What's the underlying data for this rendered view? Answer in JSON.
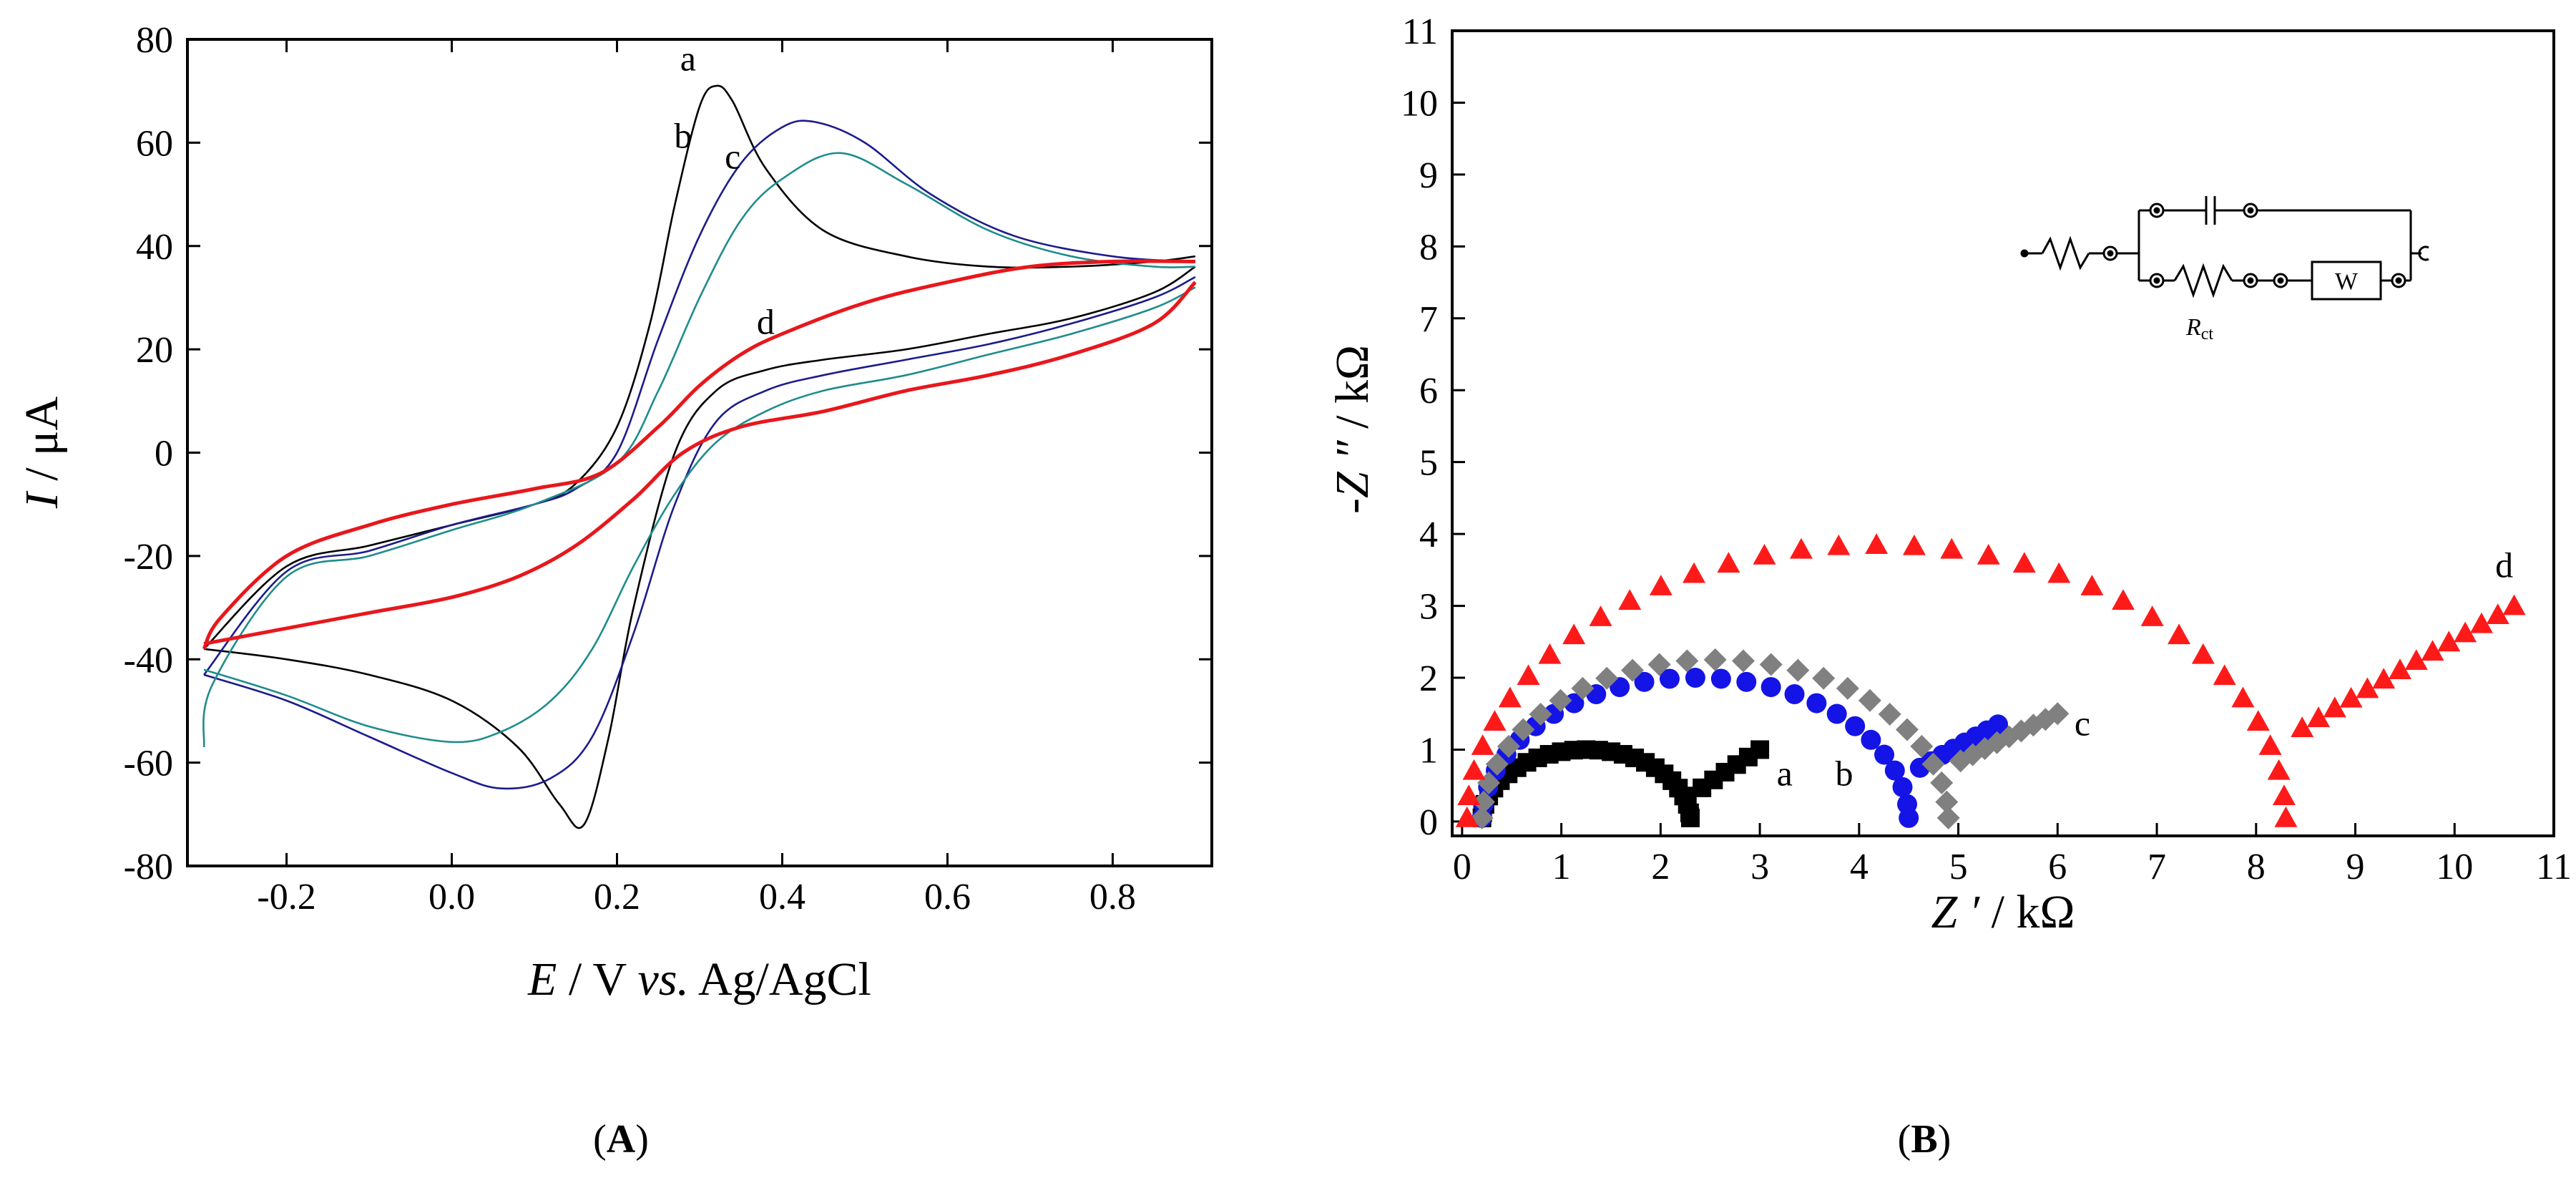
{
  "chart_data": [
    {
      "type": "line",
      "panel_label": "(A)",
      "panel_letter": "A",
      "xlabel": "E / V vs. Ag/AgCl",
      "xlabel_parts": {
        "var": "E",
        "sep": " / V ",
        "vs": "vs.",
        "ref": " Ag/AgCl"
      },
      "ylabel": "I / μA",
      "ylabel_parts": {
        "var": "I",
        "rest": " / μA"
      },
      "xlim": [
        -0.32,
        0.92
      ],
      "ylim": [
        -80,
        80
      ],
      "xticks": [
        "-0.2",
        "0.0",
        "0.2",
        "0.4",
        "0.6",
        "0.8"
      ],
      "xtick_values": [
        -0.2,
        0.0,
        0.2,
        0.4,
        0.6,
        0.8
      ],
      "yticks": [
        "80",
        "60",
        "40",
        "20",
        "0",
        "-20",
        "-40",
        "-60",
        "-80"
      ],
      "ytick_values": [
        80,
        60,
        40,
        20,
        0,
        -20,
        -40,
        -60,
        -80
      ],
      "series": [
        {
          "name": "a",
          "color": "#000000",
          "forward": [
            [
              -0.3,
              -38
            ],
            [
              -0.2,
              -22
            ],
            [
              -0.1,
              -18
            ],
            [
              0.0,
              -14
            ],
            [
              0.1,
              -10
            ],
            [
              0.15,
              -6
            ],
            [
              0.2,
              5
            ],
            [
              0.24,
              25
            ],
            [
              0.27,
              48
            ],
            [
              0.3,
              67
            ],
            [
              0.32,
              71
            ],
            [
              0.34,
              68
            ],
            [
              0.38,
              55
            ],
            [
              0.45,
              43
            ],
            [
              0.55,
              38
            ],
            [
              0.65,
              36
            ],
            [
              0.75,
              36
            ],
            [
              0.85,
              37
            ],
            [
              0.9,
              38
            ]
          ],
          "reverse": [
            [
              0.9,
              36
            ],
            [
              0.85,
              31
            ],
            [
              0.75,
              26
            ],
            [
              0.65,
              23
            ],
            [
              0.55,
              20
            ],
            [
              0.45,
              18
            ],
            [
              0.38,
              16
            ],
            [
              0.32,
              12
            ],
            [
              0.27,
              0
            ],
            [
              0.22,
              -30
            ],
            [
              0.19,
              -55
            ],
            [
              0.16,
              -72
            ],
            [
              0.13,
              -68
            ],
            [
              0.08,
              -57
            ],
            [
              0.0,
              -48
            ],
            [
              -0.1,
              -43
            ],
            [
              -0.2,
              -40
            ],
            [
              -0.3,
              -38
            ]
          ]
        },
        {
          "name": "b",
          "color": "#1c1c8c",
          "forward": [
            [
              -0.3,
              -43
            ],
            [
              -0.2,
              -23
            ],
            [
              -0.1,
              -19
            ],
            [
              0.0,
              -14
            ],
            [
              0.1,
              -10
            ],
            [
              0.15,
              -7
            ],
            [
              0.2,
              0
            ],
            [
              0.25,
              22
            ],
            [
              0.3,
              42
            ],
            [
              0.35,
              56
            ],
            [
              0.4,
              63
            ],
            [
              0.44,
              64
            ],
            [
              0.5,
              60
            ],
            [
              0.58,
              50
            ],
            [
              0.68,
              42
            ],
            [
              0.8,
              38
            ],
            [
              0.9,
              37
            ]
          ],
          "reverse": [
            [
              0.9,
              34
            ],
            [
              0.85,
              30
            ],
            [
              0.75,
              25
            ],
            [
              0.65,
              21
            ],
            [
              0.55,
              18
            ],
            [
              0.45,
              15
            ],
            [
              0.38,
              12
            ],
            [
              0.32,
              6
            ],
            [
              0.27,
              -10
            ],
            [
              0.22,
              -35
            ],
            [
              0.17,
              -55
            ],
            [
              0.12,
              -63
            ],
            [
              0.06,
              -65
            ],
            [
              0.0,
              -62
            ],
            [
              -0.1,
              -55
            ],
            [
              -0.2,
              -48
            ],
            [
              -0.3,
              -43
            ]
          ]
        },
        {
          "name": "c",
          "color": "#1f8c8c",
          "forward": [
            [
              -0.3,
              -57
            ],
            [
              -0.29,
              -45
            ],
            [
              -0.2,
              -24
            ],
            [
              -0.1,
              -20
            ],
            [
              0.0,
              -15
            ],
            [
              0.1,
              -10
            ],
            [
              0.2,
              -2
            ],
            [
              0.25,
              12
            ],
            [
              0.3,
              30
            ],
            [
              0.35,
              45
            ],
            [
              0.4,
              53
            ],
            [
              0.47,
              58
            ],
            [
              0.55,
              52
            ],
            [
              0.65,
              43
            ],
            [
              0.75,
              38
            ],
            [
              0.85,
              36
            ],
            [
              0.9,
              36
            ]
          ],
          "reverse": [
            [
              0.9,
              32
            ],
            [
              0.85,
              28
            ],
            [
              0.75,
              23
            ],
            [
              0.65,
              19
            ],
            [
              0.55,
              15
            ],
            [
              0.45,
              12
            ],
            [
              0.38,
              8
            ],
            [
              0.32,
              2
            ],
            [
              0.27,
              -8
            ],
            [
              0.22,
              -22
            ],
            [
              0.17,
              -38
            ],
            [
              0.12,
              -48
            ],
            [
              0.06,
              -54
            ],
            [
              0.0,
              -56
            ],
            [
              -0.1,
              -53
            ],
            [
              -0.2,
              -47
            ],
            [
              -0.3,
              -42
            ]
          ]
        },
        {
          "name": "d",
          "color": "#e8171c",
          "forward": [
            [
              -0.3,
              -38
            ],
            [
              -0.28,
              -32
            ],
            [
              -0.2,
              -20
            ],
            [
              -0.1,
              -14
            ],
            [
              0.0,
              -10
            ],
            [
              0.1,
              -7
            ],
            [
              0.18,
              -4
            ],
            [
              0.25,
              5
            ],
            [
              0.3,
              13
            ],
            [
              0.35,
              19
            ],
            [
              0.4,
              23
            ],
            [
              0.5,
              29
            ],
            [
              0.6,
              33
            ],
            [
              0.7,
              36
            ],
            [
              0.8,
              37
            ],
            [
              0.9,
              37
            ]
          ],
          "reverse": [
            [
              0.9,
              33
            ],
            [
              0.85,
              25
            ],
            [
              0.75,
              19
            ],
            [
              0.65,
              15
            ],
            [
              0.55,
              12
            ],
            [
              0.45,
              8
            ],
            [
              0.35,
              5
            ],
            [
              0.28,
              0
            ],
            [
              0.22,
              -9
            ],
            [
              0.15,
              -18
            ],
            [
              0.08,
              -24
            ],
            [
              0.0,
              -28
            ],
            [
              -0.1,
              -31
            ],
            [
              -0.2,
              -34
            ],
            [
              -0.3,
              -37
            ]
          ]
        }
      ]
    },
    {
      "type": "scatter",
      "panel_label": "(B)",
      "panel_letter": "B",
      "xlabel": "Z ′ / kΩ",
      "xlabel_parts": {
        "var": "Z ′",
        "rest": " / kΩ"
      },
      "ylabel": "-Z ″ / kΩ",
      "ylabel_parts": {
        "var": "-Z ″",
        "rest": " / kΩ"
      },
      "xlim": [
        -0.1,
        11
      ],
      "ylim": [
        -0.2,
        11
      ],
      "xticks": [
        "0",
        "1",
        "2",
        "3",
        "4",
        "5",
        "6",
        "7",
        "8",
        "9",
        "10",
        "11"
      ],
      "xtick_values": [
        0,
        1,
        2,
        3,
        4,
        5,
        6,
        7,
        8,
        9,
        10,
        11
      ],
      "yticks": [
        "0",
        "1",
        "2",
        "3",
        "4",
        "5",
        "6",
        "7",
        "8",
        "9",
        "10",
        "11"
      ],
      "ytick_values": [
        0,
        1,
        2,
        3,
        4,
        5,
        6,
        7,
        8,
        9,
        10,
        11
      ],
      "circuit": {
        "rct_label": "R",
        "rct_sub": "ct",
        "w_label": "W"
      },
      "series": [
        {
          "name": "a",
          "color": "#000000",
          "marker": "square",
          "semicircle": {
            "start": 0.2,
            "end": 2.3,
            "height": 1.0
          },
          "tail": {
            "from": [
              2.3,
              0.35
            ],
            "to": [
              3.0,
              1.0
            ],
            "n": 6
          }
        },
        {
          "name": "b",
          "color": "#1414e6",
          "marker": "circle",
          "semicircle": {
            "start": 0.2,
            "end": 4.5,
            "height": 2.0
          },
          "tail": {
            "from": [
              4.5,
              0.65
            ],
            "to": [
              5.4,
              1.35
            ],
            "n": 8
          }
        },
        {
          "name": "c",
          "color": "#808080",
          "marker": "diamond",
          "semicircle": {
            "start": 0.2,
            "end": 4.9,
            "height": 2.25
          },
          "tail": {
            "from": [
              4.9,
              0.75
            ],
            "to": [
              6.0,
              1.5
            ],
            "n": 9
          }
        },
        {
          "name": "d",
          "color": "#ff1a1a",
          "marker": "triangle",
          "semicircle": {
            "start": 0.05,
            "end": 8.3,
            "height": 3.85
          },
          "tail": {
            "from": [
              8.3,
              1.15
            ],
            "to": [
              10.6,
              3.0
            ],
            "n": 14
          }
        }
      ]
    }
  ]
}
